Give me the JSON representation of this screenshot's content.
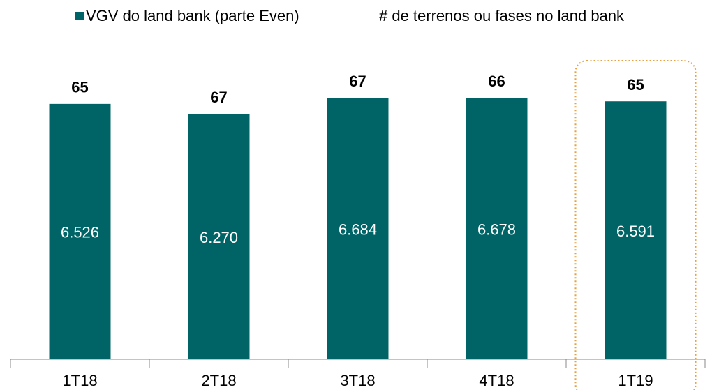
{
  "chart_data": {
    "type": "bar",
    "categories": [
      "1T18",
      "2T18",
      "3T18",
      "4T18",
      "1T19"
    ],
    "series": [
      {
        "name": "VGV do land bank (parte Even)",
        "color": "#006466",
        "values": [
          6526,
          6270,
          6684,
          6678,
          6591
        ],
        "value_labels": [
          "6.526",
          "6.270",
          "6.684",
          "6.678",
          "6.591"
        ]
      },
      {
        "name": "# de terrenos ou fases no land bank",
        "values": [
          65,
          67,
          67,
          66,
          65
        ]
      }
    ]
  }
}
